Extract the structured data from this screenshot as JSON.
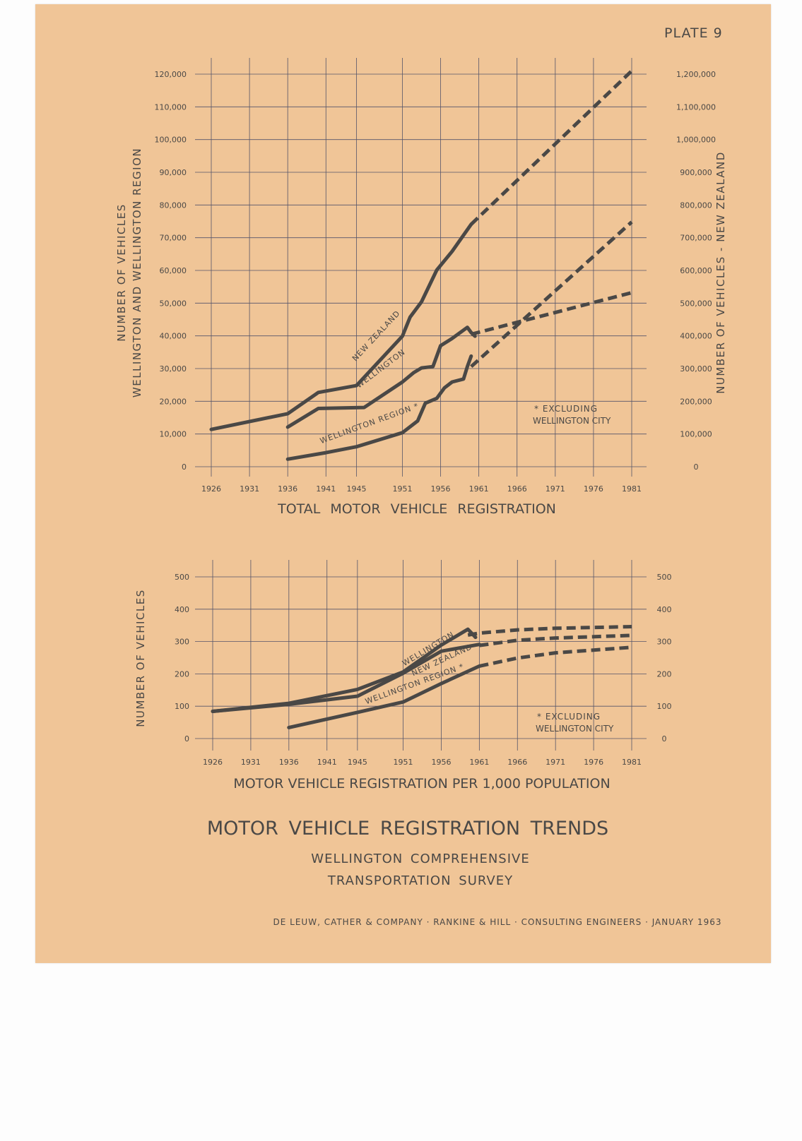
{
  "plate_label": "PLATE 9",
  "title": "MOTOR VEHICLE REGISTRATION TRENDS",
  "subtitle_line1": "WELLINGTON COMPREHENSIVE",
  "subtitle_line2": "TRANSPORTATION SURVEY",
  "footer": "DE LEUW, CATHER & COMPANY · RANKINE & HILL · CONSULTING ENGINEERS · JANUARY 1963",
  "colors": {
    "paper": "#f0c597",
    "ink": "#4a4846",
    "grid": "#55556a"
  },
  "chart_data": [
    {
      "type": "line",
      "title": "TOTAL MOTOR VEHICLE REGISTRATION",
      "ylabel_left": [
        "NUMBER OF VEHICLES",
        "WELLINGTON AND WELLINGTON REGION"
      ],
      "ylabel_right": "NUMBER OF VEHICLES - NEW ZEALAND",
      "x_ticks": [
        "1926",
        "1931",
        "1936",
        "1941",
        "1945",
        "1951",
        "1956",
        "1961",
        "1966",
        "1971",
        "1976",
        "1981"
      ],
      "y_left_ticks": [
        "0",
        "10,000",
        "20,000",
        "30,000",
        "40,000",
        "50,000",
        "60,000",
        "70,000",
        "80,000",
        "90,000",
        "100,000",
        "110,000",
        "120,000"
      ],
      "y_right_ticks": [
        "0",
        "100,000",
        "200,000",
        "300,000",
        "400,000",
        "500,000",
        "600,000",
        "700,000",
        "800,000",
        "900,000",
        "1,000,000",
        "1,100,000",
        "1,200,000"
      ],
      "ylim_left": [
        0,
        120000
      ],
      "ylim_right": [
        0,
        1200000
      ],
      "xlim": [
        1926,
        1981
      ],
      "grid": true,
      "annotation": [
        "* EXCLUDING",
        "WELLINGTON CITY"
      ],
      "series": [
        {
          "name": "NEW ZEALAND",
          "axis": "right",
          "actual": [
            [
              1926,
              114000
            ],
            [
              1936,
              162000
            ],
            [
              1940,
              227000
            ],
            [
              1945,
              248000
            ],
            [
              1951,
              399000
            ],
            [
              1952,
              457000
            ],
            [
              1953.5,
              504000
            ],
            [
              1955.5,
              601000
            ],
            [
              1957.5,
              658000
            ],
            [
              1960,
              741000
            ]
          ],
          "projected": [
            [
              1960,
              741000
            ],
            [
              1981,
              1210000
            ]
          ]
        },
        {
          "name": "WELLINGTON",
          "axis": "left",
          "actual": [
            [
              1936,
              12100
            ],
            [
              1940,
              17800
            ],
            [
              1946,
              18100
            ],
            [
              1951,
              25900
            ],
            [
              1952.5,
              28800
            ],
            [
              1953.5,
              30200
            ],
            [
              1955,
              30600
            ],
            [
              1956,
              37000
            ],
            [
              1957.5,
              39200
            ],
            [
              1959.5,
              42600
            ],
            [
              1960,
              41000
            ],
            [
              1960.5,
              39900
            ]
          ],
          "projected": [
            [
              1960,
              40500
            ],
            [
              1981,
              53200
            ]
          ]
        },
        {
          "name": "WELLINGTON REGION *",
          "axis": "left",
          "actual": [
            [
              1936,
              2300
            ],
            [
              1941,
              4300
            ],
            [
              1945,
              6100
            ],
            [
              1951,
              10400
            ],
            [
              1953,
              14000
            ],
            [
              1954,
              19400
            ],
            [
              1955.5,
              20900
            ],
            [
              1956.5,
              24100
            ],
            [
              1957.5,
              25900
            ],
            [
              1959,
              26800
            ],
            [
              1959.5,
              30600
            ],
            [
              1960,
              33800
            ]
          ],
          "projected": [
            [
              1960,
              30600
            ],
            [
              1981,
              74800
            ]
          ]
        }
      ]
    },
    {
      "type": "line",
      "title": "MOTOR VEHICLE REGISTRATION PER 1,000 POPULATION",
      "ylabel_left": [
        "NUMBER OF VEHICLES"
      ],
      "x_ticks": [
        "1926",
        "1931",
        "1936",
        "1941",
        "1945",
        "1951",
        "1956",
        "1961",
        "1966",
        "1971",
        "1976",
        "1981"
      ],
      "y_left_ticks": [
        "0",
        "100",
        "200",
        "300",
        "400",
        "500"
      ],
      "y_right_ticks": [
        "0",
        "100",
        "200",
        "300",
        "400",
        "500"
      ],
      "ylim_left": [
        0,
        500
      ],
      "xlim": [
        1926,
        1981
      ],
      "grid": true,
      "annotation": [
        "* EXCLUDING",
        "WELLINGTON CITY"
      ],
      "series": [
        {
          "name": "WELLINGTON",
          "actual": [
            [
              1926,
              84
            ],
            [
              1936,
              109
            ],
            [
              1945,
              152
            ],
            [
              1951,
              206
            ],
            [
              1956,
              289
            ],
            [
              1959.5,
              338
            ],
            [
              1960.5,
              313
            ]
          ],
          "projected": [
            [
              1959.5,
              320
            ],
            [
              1961,
              326
            ],
            [
              1966,
              336
            ],
            [
              1971,
              341
            ],
            [
              1981,
              346
            ]
          ]
        },
        {
          "name": "NEW ZEALAND",
          "actual": [
            [
              1926,
              84
            ],
            [
              1936,
              106
            ],
            [
              1945,
              131
            ],
            [
              1951,
              202
            ],
            [
              1956,
              270
            ],
            [
              1961,
              291
            ]
          ],
          "projected": [
            [
              1961,
              288
            ],
            [
              1966,
              304
            ],
            [
              1971,
              311
            ],
            [
              1981,
              319
            ]
          ]
        },
        {
          "name": "WELLINGTON REGION *",
          "actual": [
            [
              1936,
              34
            ],
            [
              1945,
              81
            ],
            [
              1951,
              113
            ],
            [
              1956,
              170
            ],
            [
              1961,
              224
            ]
          ],
          "projected": [
            [
              1961,
              224
            ],
            [
              1966,
              249
            ],
            [
              1971,
              265
            ],
            [
              1981,
              282
            ]
          ]
        }
      ]
    }
  ]
}
